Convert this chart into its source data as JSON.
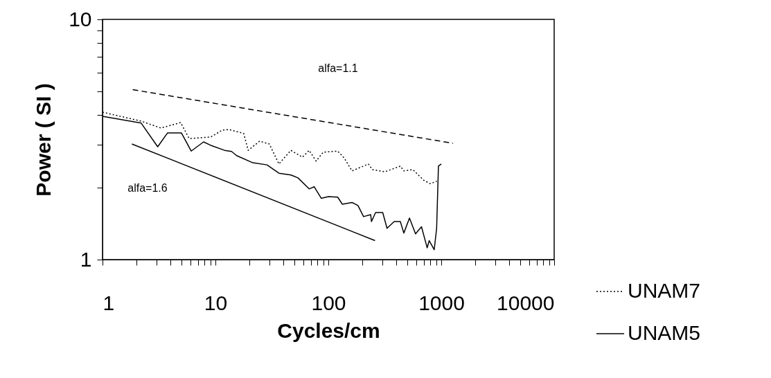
{
  "chart_data": {
    "type": "line",
    "xlabel": "Cycles/cm",
    "ylabel": "Power ( SI )",
    "log": "xy",
    "grid": false,
    "legend": "bottom right",
    "marker": "none",
    "xlim": [
      1,
      10000
    ],
    "xticks": [
      1,
      {
        "value": 2,
        "label": null
      },
      {
        "value": 3,
        "label": null
      },
      {
        "value": 4,
        "label": null
      },
      {
        "value": 5,
        "label": null
      },
      {
        "value": 6,
        "label": null
      },
      {
        "value": 7,
        "label": null
      },
      {
        "value": 8,
        "label": null
      },
      {
        "value": 9,
        "label": null
      },
      10,
      {
        "value": 20,
        "label": null
      },
      {
        "value": 30,
        "label": null
      },
      {
        "value": 40,
        "label": null
      },
      {
        "value": 50,
        "label": null
      },
      {
        "value": 60,
        "label": null
      },
      {
        "value": 70,
        "label": null
      },
      {
        "value": 80,
        "label": null
      },
      {
        "value": 90,
        "label": null
      },
      100,
      {
        "value": 200,
        "label": null
      },
      {
        "value": 300,
        "label": null
      },
      {
        "value": 400,
        "label": null
      },
      {
        "value": 500,
        "label": null
      },
      {
        "value": 600,
        "label": null
      },
      {
        "value": 700,
        "label": null
      },
      {
        "value": 800,
        "label": null
      },
      {
        "value": 900,
        "label": null
      },
      1000,
      {
        "value": 2000,
        "label": null
      },
      {
        "value": 3000,
        "label": null
      },
      {
        "value": 4000,
        "label": null
      },
      {
        "value": 5000,
        "label": null
      },
      {
        "value": 6000,
        "label": null
      },
      {
        "value": 7000,
        "label": null
      },
      {
        "value": 8000,
        "label": null
      },
      {
        "value": 9000,
        "label": null
      },
      10000
    ],
    "ylim": [
      1,
      10
    ],
    "yticks": [
      1,
      {
        "value": 2,
        "label": null
      },
      {
        "value": 3,
        "label": null
      },
      {
        "value": 4,
        "label": null
      },
      {
        "value": 5,
        "label": null
      },
      {
        "value": 6,
        "label": null
      },
      {
        "value": 7,
        "label": null
      },
      {
        "value": 8,
        "label": null
      },
      {
        "value": 9,
        "label": null
      },
      10
    ],
    "annotations": [
      "alfa=1.1",
      "alfa=1.6"
    ],
    "series": [
      {
        "name": "UNAM7",
        "color": "#000000",
        "line_style": "dotted",
        "x": [
          1,
          2.2,
          3.29,
          4.92,
          5.85,
          9.1,
          11.5,
          13.2,
          17.8,
          19.5,
          24.6,
          30,
          36.5,
          46.6,
          59,
          67.6,
          78,
          90,
          121,
          138,
          162,
          226,
          246,
          316,
          434,
          466,
          560,
          700,
          800,
          910
        ],
        "values": [
          4.11,
          3.77,
          3.53,
          3.72,
          3.19,
          3.24,
          3.46,
          3.48,
          3.35,
          2.85,
          3.11,
          3.03,
          2.5,
          2.85,
          2.67,
          2.85,
          2.57,
          2.8,
          2.83,
          2.65,
          2.34,
          2.5,
          2.37,
          2.32,
          2.45,
          2.34,
          2.37,
          2.14,
          2.07,
          2.12
        ]
      },
      {
        "name": "UNAM5",
        "color": "#000000",
        "line_style": "solid",
        "x": [
          1,
          2.2,
          3.08,
          3.77,
          4.99,
          6.1,
          7.85,
          9.1,
          12.05,
          13.9,
          15.4,
          21.4,
          28.6,
          36.5,
          46.6,
          53.8,
          67.6,
          75,
          86.5,
          100,
          121,
          133,
          162,
          183,
          205,
          237,
          241,
          262,
          303,
          331,
          383,
          434,
          466,
          523,
          592,
          668,
          750,
          782,
          866,
          910,
          944,
          1000
        ],
        "values": [
          3.95,
          3.7,
          2.95,
          3.37,
          3.37,
          2.83,
          3.09,
          2.99,
          2.85,
          2.82,
          2.71,
          2.53,
          2.48,
          2.29,
          2.25,
          2.19,
          1.97,
          2.01,
          1.8,
          1.83,
          1.82,
          1.7,
          1.73,
          1.68,
          1.51,
          1.54,
          1.44,
          1.57,
          1.57,
          1.35,
          1.44,
          1.44,
          1.29,
          1.49,
          1.28,
          1.37,
          1.12,
          1.2,
          1.1,
          1.35,
          2.45,
          2.5
        ]
      },
      {
        "color": "#000000",
        "line_style": "dashed",
        "x": [
          1.85,
          1270
        ],
        "values": [
          5.1,
          3.05
        ]
      },
      {
        "color": "#000000",
        "line_style": "solid",
        "x": [
          1.82,
          259
        ],
        "values": [
          3.03,
          1.2
        ]
      }
    ]
  }
}
